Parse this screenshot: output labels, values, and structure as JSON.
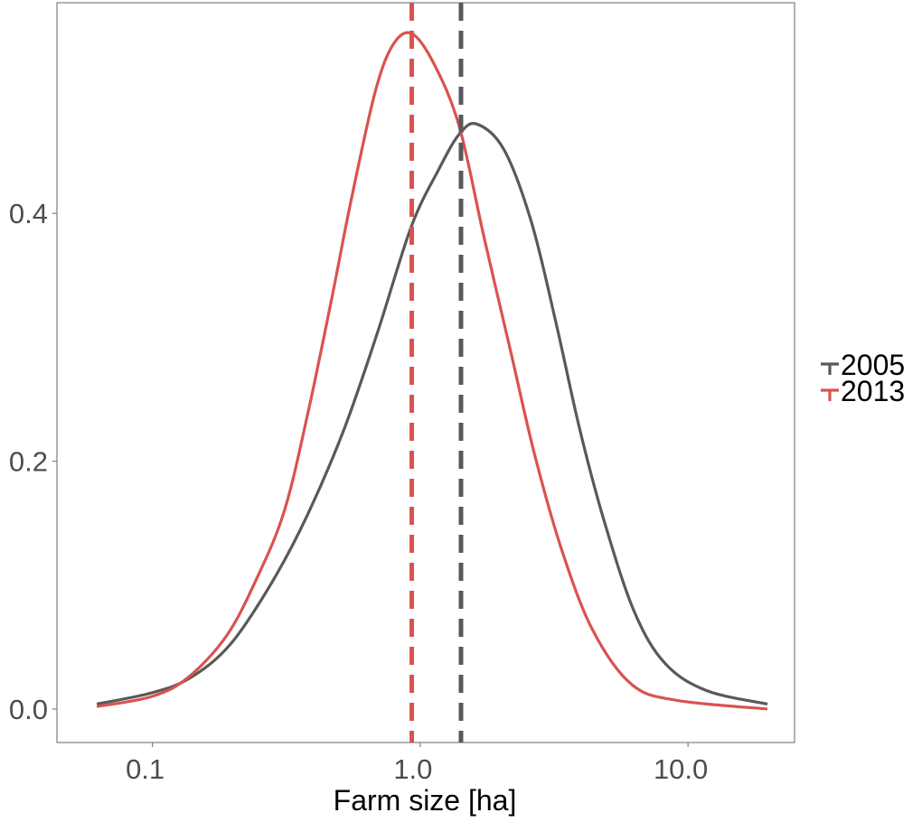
{
  "chart_data": {
    "type": "line",
    "title": "",
    "xlabel": "Farm size [ha]",
    "ylabel": "",
    "xscale": "log10",
    "xlim": [
      0.044,
      25
    ],
    "ylim": [
      -0.027,
      0.57
    ],
    "grid": false,
    "legend_position": "right",
    "x_ticks": [
      {
        "value": 0.1,
        "label": "0.1"
      },
      {
        "value": 1.0,
        "label": "1.0"
      },
      {
        "value": 10.0,
        "label": "10.0"
      }
    ],
    "y_ticks": [
      {
        "value": 0.0,
        "label": "0.0"
      },
      {
        "value": 0.2,
        "label": "0.2"
      },
      {
        "value": 0.4,
        "label": "0.4"
      }
    ],
    "series": [
      {
        "name": "2005",
        "color": "#595959",
        "x": [
          0.062,
          0.099,
          0.138,
          0.195,
          0.279,
          0.38,
          0.52,
          0.693,
          0.925,
          1.17,
          1.4,
          1.63,
          2.06,
          2.61,
          3.22,
          3.94,
          4.86,
          6.29,
          8.2,
          11.7,
          19.8
        ],
        "y": [
          0.004,
          0.013,
          0.025,
          0.052,
          0.102,
          0.157,
          0.226,
          0.304,
          0.389,
          0.435,
          0.464,
          0.472,
          0.451,
          0.392,
          0.311,
          0.226,
          0.152,
          0.079,
          0.037,
          0.015,
          0.004
        ],
        "dashed_line_x": 1.42
      },
      {
        "name": "2013",
        "color": "#d9534f",
        "x": [
          0.062,
          0.099,
          0.135,
          0.189,
          0.246,
          0.311,
          0.38,
          0.47,
          0.549,
          0.677,
          0.791,
          0.932,
          1.13,
          1.4,
          1.73,
          2.18,
          2.67,
          3.37,
          4.4,
          6.15,
          9.08,
          19.8
        ],
        "y": [
          0.002,
          0.01,
          0.025,
          0.059,
          0.106,
          0.16,
          0.238,
          0.334,
          0.408,
          0.497,
          0.536,
          0.545,
          0.52,
          0.47,
          0.381,
          0.288,
          0.206,
          0.129,
          0.064,
          0.02,
          0.007,
          0.0
        ],
        "dashed_line_x": 0.93
      }
    ]
  }
}
